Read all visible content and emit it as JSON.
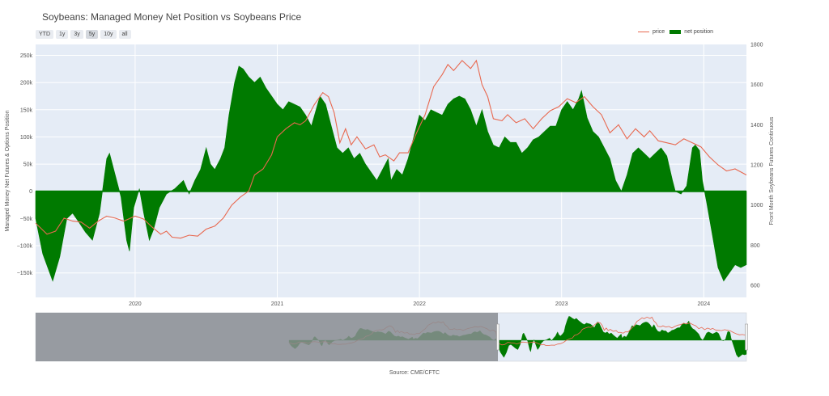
{
  "title": "Soybeans: Managed Money Net Position vs Soybeans Price",
  "range_buttons": [
    "YTD",
    "1y",
    "3y",
    "5y",
    "10y",
    "all"
  ],
  "active_range": "5y",
  "source": "Source: CME/CFTC",
  "colors": {
    "price": "#e8684f",
    "net": "#007a00",
    "plot_bg": "#e5ecf6",
    "mask": "#8a8d92"
  },
  "chart_data": {
    "type": "area",
    "title": "Soybeans: Managed Money Net Position vs Soybeans Price",
    "x_ticks": [
      "2020",
      "2021",
      "2022",
      "2023",
      "2024"
    ],
    "x_range": [
      2019.3,
      2024.3
    ],
    "y_left": {
      "label": "Managed Money Net Futures & Options Position",
      "range": [
        -195000,
        270000
      ],
      "ticks": [
        -150000,
        -100000,
        -50000,
        0,
        50000,
        100000,
        150000,
        200000,
        250000
      ],
      "tick_labels": [
        "−150k",
        "−100k",
        "−50k",
        "0",
        "50k",
        "100k",
        "150k",
        "200k",
        "250k"
      ]
    },
    "y_right": {
      "label": "Front Month Soybeans Futures Continuous",
      "range": [
        540,
        1800
      ],
      "ticks": [
        600,
        800,
        1000,
        1200,
        1400,
        1600,
        1800
      ],
      "tick_labels": [
        "600",
        "800",
        "1000",
        "1200",
        "1400",
        "1600",
        "1800"
      ]
    },
    "legend": {
      "placement": "top-right",
      "entries": [
        "price",
        "net position"
      ]
    },
    "rangeslider": {
      "visible": true,
      "selected": [
        "2019.3",
        "2024.3"
      ]
    },
    "series": [
      {
        "name": "net position",
        "axis": "left",
        "style": "area",
        "points": [
          [
            2019.3,
            -50000
          ],
          [
            2019.35,
            -115000
          ],
          [
            2019.42,
            -165000
          ],
          [
            2019.47,
            -120000
          ],
          [
            2019.52,
            -50000
          ],
          [
            2019.56,
            -40000
          ],
          [
            2019.6,
            -55000
          ],
          [
            2019.65,
            -75000
          ],
          [
            2019.7,
            -90000
          ],
          [
            2019.75,
            -40000
          ],
          [
            2019.8,
            60000
          ],
          [
            2019.82,
            70000
          ],
          [
            2019.86,
            30000
          ],
          [
            2019.9,
            -10000
          ],
          [
            2019.94,
            -90000
          ],
          [
            2019.96,
            -110000
          ],
          [
            2019.99,
            -30000
          ],
          [
            2020.03,
            5000
          ],
          [
            2020.06,
            -40000
          ],
          [
            2020.1,
            -90000
          ],
          [
            2020.13,
            -70000
          ],
          [
            2020.17,
            -30000
          ],
          [
            2020.22,
            -5000
          ],
          [
            2020.28,
            5000
          ],
          [
            2020.34,
            20000
          ],
          [
            2020.38,
            -5000
          ],
          [
            2020.42,
            20000
          ],
          [
            2020.46,
            40000
          ],
          [
            2020.5,
            80000
          ],
          [
            2020.53,
            50000
          ],
          [
            2020.56,
            40000
          ],
          [
            2020.6,
            60000
          ],
          [
            2020.63,
            80000
          ],
          [
            2020.66,
            140000
          ],
          [
            2020.7,
            200000
          ],
          [
            2020.73,
            230000
          ],
          [
            2020.76,
            225000
          ],
          [
            2020.8,
            210000
          ],
          [
            2020.84,
            200000
          ],
          [
            2020.88,
            210000
          ],
          [
            2020.92,
            190000
          ],
          [
            2020.96,
            175000
          ],
          [
            2021.0,
            160000
          ],
          [
            2021.04,
            150000
          ],
          [
            2021.08,
            165000
          ],
          [
            2021.12,
            160000
          ],
          [
            2021.16,
            155000
          ],
          [
            2021.2,
            140000
          ],
          [
            2021.24,
            120000
          ],
          [
            2021.3,
            175000
          ],
          [
            2021.34,
            160000
          ],
          [
            2021.38,
            120000
          ],
          [
            2021.42,
            80000
          ],
          [
            2021.46,
            70000
          ],
          [
            2021.5,
            80000
          ],
          [
            2021.54,
            60000
          ],
          [
            2021.58,
            70000
          ],
          [
            2021.62,
            50000
          ],
          [
            2021.66,
            35000
          ],
          [
            2021.7,
            20000
          ],
          [
            2021.74,
            40000
          ],
          [
            2021.78,
            60000
          ],
          [
            2021.8,
            20000
          ],
          [
            2021.84,
            40000
          ],
          [
            2021.88,
            30000
          ],
          [
            2021.92,
            60000
          ],
          [
            2021.96,
            100000
          ],
          [
            2022.0,
            140000
          ],
          [
            2022.04,
            130000
          ],
          [
            2022.08,
            150000
          ],
          [
            2022.12,
            145000
          ],
          [
            2022.16,
            140000
          ],
          [
            2022.2,
            160000
          ],
          [
            2022.24,
            170000
          ],
          [
            2022.28,
            175000
          ],
          [
            2022.32,
            170000
          ],
          [
            2022.36,
            150000
          ],
          [
            2022.4,
            120000
          ],
          [
            2022.44,
            150000
          ],
          [
            2022.48,
            110000
          ],
          [
            2022.52,
            85000
          ],
          [
            2022.56,
            80000
          ],
          [
            2022.6,
            100000
          ],
          [
            2022.64,
            90000
          ],
          [
            2022.68,
            90000
          ],
          [
            2022.72,
            70000
          ],
          [
            2022.76,
            80000
          ],
          [
            2022.8,
            95000
          ],
          [
            2022.84,
            100000
          ],
          [
            2022.88,
            110000
          ],
          [
            2022.92,
            120000
          ],
          [
            2022.96,
            120000
          ],
          [
            2023.0,
            150000
          ],
          [
            2023.04,
            165000
          ],
          [
            2023.08,
            150000
          ],
          [
            2023.12,
            170000
          ],
          [
            2023.14,
            185000
          ],
          [
            2023.18,
            135000
          ],
          [
            2023.22,
            110000
          ],
          [
            2023.26,
            100000
          ],
          [
            2023.3,
            80000
          ],
          [
            2023.34,
            60000
          ],
          [
            2023.38,
            20000
          ],
          [
            2023.42,
            0
          ],
          [
            2023.46,
            30000
          ],
          [
            2023.5,
            70000
          ],
          [
            2023.54,
            80000
          ],
          [
            2023.58,
            70000
          ],
          [
            2023.62,
            60000
          ],
          [
            2023.66,
            70000
          ],
          [
            2023.7,
            80000
          ],
          [
            2023.74,
            65000
          ],
          [
            2023.78,
            20000
          ],
          [
            2023.8,
            0
          ],
          [
            2023.84,
            -5000
          ],
          [
            2023.88,
            10000
          ],
          [
            2023.92,
            80000
          ],
          [
            2023.94,
            85000
          ],
          [
            2023.97,
            75000
          ],
          [
            2023.99,
            20000
          ],
          [
            2024.02,
            -20000
          ],
          [
            2024.06,
            -80000
          ],
          [
            2024.1,
            -140000
          ],
          [
            2024.14,
            -165000
          ],
          [
            2024.18,
            -150000
          ],
          [
            2024.22,
            -135000
          ],
          [
            2024.26,
            -140000
          ],
          [
            2024.3,
            -135000
          ]
        ]
      },
      {
        "name": "price",
        "axis": "right",
        "style": "line",
        "points": [
          [
            2019.3,
            910
          ],
          [
            2019.38,
            855
          ],
          [
            2019.44,
            870
          ],
          [
            2019.5,
            935
          ],
          [
            2019.56,
            920
          ],
          [
            2019.62,
            915
          ],
          [
            2019.68,
            885
          ],
          [
            2019.74,
            920
          ],
          [
            2019.8,
            945
          ],
          [
            2019.86,
            935
          ],
          [
            2019.92,
            920
          ],
          [
            2020.0,
            945
          ],
          [
            2020.06,
            930
          ],
          [
            2020.12,
            890
          ],
          [
            2020.18,
            855
          ],
          [
            2020.22,
            870
          ],
          [
            2020.26,
            840
          ],
          [
            2020.32,
            835
          ],
          [
            2020.38,
            850
          ],
          [
            2020.44,
            845
          ],
          [
            2020.5,
            880
          ],
          [
            2020.56,
            895
          ],
          [
            2020.62,
            935
          ],
          [
            2020.68,
            1000
          ],
          [
            2020.74,
            1040
          ],
          [
            2020.8,
            1070
          ],
          [
            2020.84,
            1150
          ],
          [
            2020.9,
            1180
          ],
          [
            2020.96,
            1250
          ],
          [
            2021.0,
            1340
          ],
          [
            2021.06,
            1380
          ],
          [
            2021.12,
            1410
          ],
          [
            2021.16,
            1400
          ],
          [
            2021.2,
            1420
          ],
          [
            2021.26,
            1500
          ],
          [
            2021.32,
            1560
          ],
          [
            2021.36,
            1540
          ],
          [
            2021.4,
            1460
          ],
          [
            2021.44,
            1310
          ],
          [
            2021.48,
            1380
          ],
          [
            2021.52,
            1300
          ],
          [
            2021.56,
            1340
          ],
          [
            2021.62,
            1280
          ],
          [
            2021.68,
            1300
          ],
          [
            2021.72,
            1240
          ],
          [
            2021.76,
            1250
          ],
          [
            2021.82,
            1220
          ],
          [
            2021.86,
            1260
          ],
          [
            2021.92,
            1260
          ],
          [
            2021.98,
            1360
          ],
          [
            2022.04,
            1450
          ],
          [
            2022.1,
            1590
          ],
          [
            2022.16,
            1650
          ],
          [
            2022.2,
            1700
          ],
          [
            2022.24,
            1670
          ],
          [
            2022.3,
            1720
          ],
          [
            2022.36,
            1680
          ],
          [
            2022.4,
            1720
          ],
          [
            2022.44,
            1600
          ],
          [
            2022.48,
            1540
          ],
          [
            2022.52,
            1430
          ],
          [
            2022.58,
            1420
          ],
          [
            2022.62,
            1450
          ],
          [
            2022.68,
            1410
          ],
          [
            2022.74,
            1430
          ],
          [
            2022.8,
            1380
          ],
          [
            2022.86,
            1430
          ],
          [
            2022.92,
            1470
          ],
          [
            2022.98,
            1490
          ],
          [
            2023.04,
            1530
          ],
          [
            2023.1,
            1510
          ],
          [
            2023.16,
            1540
          ],
          [
            2023.22,
            1490
          ],
          [
            2023.28,
            1450
          ],
          [
            2023.34,
            1360
          ],
          [
            2023.4,
            1400
          ],
          [
            2023.46,
            1330
          ],
          [
            2023.52,
            1380
          ],
          [
            2023.58,
            1340
          ],
          [
            2023.62,
            1370
          ],
          [
            2023.68,
            1320
          ],
          [
            2023.74,
            1310
          ],
          [
            2023.8,
            1300
          ],
          [
            2023.86,
            1330
          ],
          [
            2023.92,
            1310
          ],
          [
            2023.98,
            1290
          ],
          [
            2024.04,
            1240
          ],
          [
            2024.1,
            1200
          ],
          [
            2024.16,
            1170
          ],
          [
            2024.22,
            1180
          ],
          [
            2024.3,
            1150
          ]
        ]
      }
    ]
  }
}
